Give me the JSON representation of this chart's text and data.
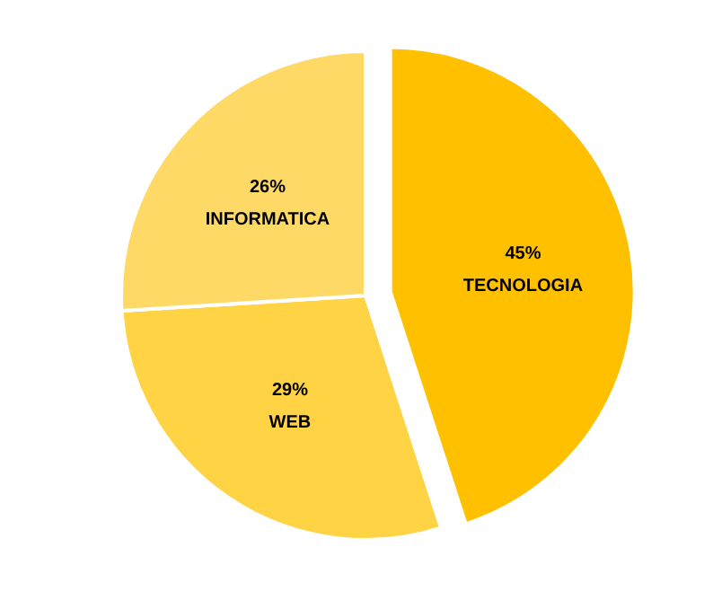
{
  "chart_data": {
    "type": "pie",
    "categories": [
      "TECNOLOGIA",
      "WEB",
      "INFORMATICA"
    ],
    "values": [
      45,
      29,
      26
    ],
    "value_labels": [
      "45%",
      "29%",
      "26%"
    ],
    "colors": [
      "#ffc000",
      "#ffd343",
      "#ffd966"
    ]
  }
}
